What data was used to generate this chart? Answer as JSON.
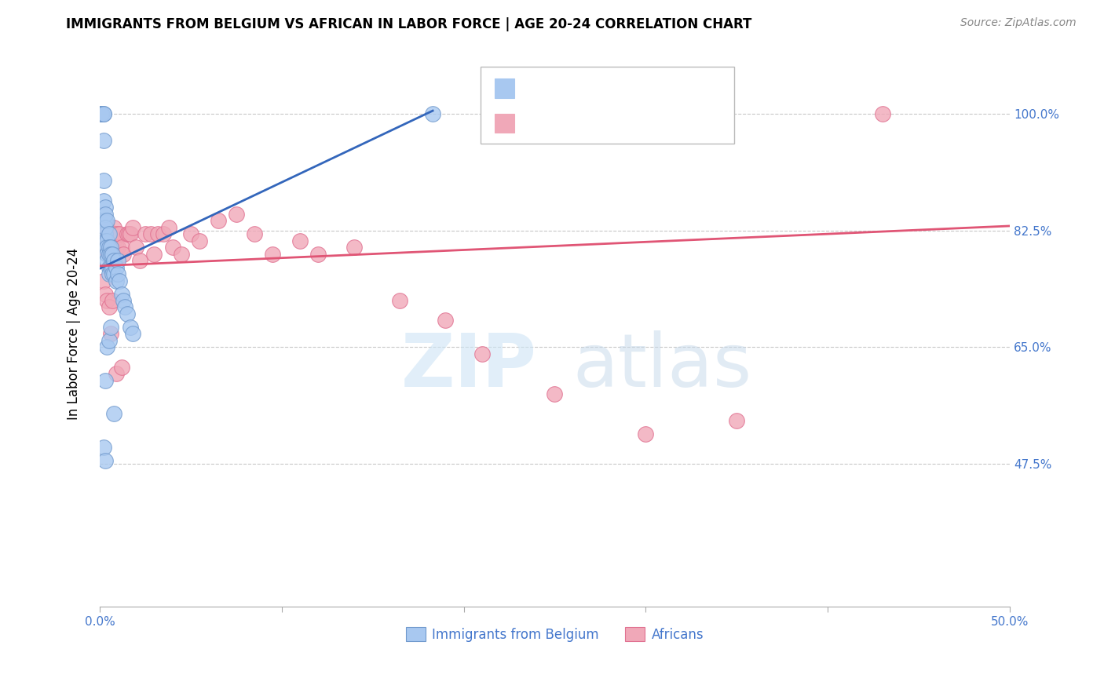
{
  "title": "IMMIGRANTS FROM BELGIUM VS AFRICAN IN LABOR FORCE | AGE 20-24 CORRELATION CHART",
  "source": "Source: ZipAtlas.com",
  "ylabel": "In Labor Force | Age 20-24",
  "xlim": [
    0.0,
    0.5
  ],
  "ylim": [
    0.26,
    1.08
  ],
  "xtick_labels": [
    "0.0%",
    "",
    "",
    "",
    "",
    "50.0%"
  ],
  "xtick_vals": [
    0.0,
    0.1,
    0.2,
    0.3,
    0.4,
    0.5
  ],
  "ytick_labels": [
    "47.5%",
    "65.0%",
    "82.5%",
    "100.0%"
  ],
  "ytick_vals": [
    0.475,
    0.65,
    0.825,
    1.0
  ],
  "grid_color": "#c8c8c8",
  "blue_color": "#a8c8f0",
  "pink_color": "#f0a8b8",
  "blue_edge": "#7099cc",
  "pink_edge": "#e07090",
  "blue_line_color": "#3366bb",
  "pink_line_color": "#e05575",
  "axis_label_color": "#4477CC",
  "right_label_color": "#4477CC",
  "legend_label_blue": "Immigrants from Belgium",
  "legend_label_pink": "Africans",
  "blue_scatter_x": [
    0.001,
    0.001,
    0.001,
    0.001,
    0.001,
    0.001,
    0.001,
    0.001,
    0.002,
    0.002,
    0.002,
    0.002,
    0.002,
    0.002,
    0.003,
    0.003,
    0.003,
    0.003,
    0.003,
    0.003,
    0.003,
    0.004,
    0.004,
    0.004,
    0.004,
    0.004,
    0.005,
    0.005,
    0.005,
    0.005,
    0.005,
    0.006,
    0.006,
    0.006,
    0.007,
    0.007,
    0.007,
    0.008,
    0.008,
    0.009,
    0.009,
    0.01,
    0.01,
    0.011,
    0.012,
    0.013,
    0.014,
    0.015,
    0.017,
    0.018,
    0.002,
    0.003,
    0.003,
    0.004,
    0.005,
    0.006,
    0.008,
    0.183
  ],
  "blue_scatter_y": [
    1.0,
    1.0,
    1.0,
    1.0,
    1.0,
    1.0,
    1.0,
    1.0,
    1.0,
    1.0,
    0.96,
    0.9,
    0.87,
    0.84,
    0.86,
    0.84,
    0.82,
    0.85,
    0.83,
    0.81,
    0.8,
    0.84,
    0.81,
    0.8,
    0.79,
    0.78,
    0.82,
    0.8,
    0.79,
    0.77,
    0.76,
    0.8,
    0.79,
    0.77,
    0.79,
    0.77,
    0.76,
    0.78,
    0.76,
    0.77,
    0.75,
    0.78,
    0.76,
    0.75,
    0.73,
    0.72,
    0.71,
    0.7,
    0.68,
    0.67,
    0.5,
    0.48,
    0.6,
    0.65,
    0.66,
    0.68,
    0.55,
    1.0
  ],
  "pink_scatter_x": [
    0.001,
    0.002,
    0.002,
    0.003,
    0.003,
    0.004,
    0.004,
    0.005,
    0.005,
    0.006,
    0.006,
    0.007,
    0.007,
    0.008,
    0.008,
    0.009,
    0.009,
    0.01,
    0.011,
    0.012,
    0.013,
    0.015,
    0.016,
    0.017,
    0.018,
    0.02,
    0.022,
    0.025,
    0.028,
    0.03,
    0.032,
    0.035,
    0.038,
    0.04,
    0.045,
    0.05,
    0.055,
    0.065,
    0.075,
    0.085,
    0.095,
    0.11,
    0.12,
    0.14,
    0.165,
    0.19,
    0.21,
    0.25,
    0.3,
    0.35,
    0.002,
    0.003,
    0.004,
    0.005,
    0.006,
    0.007,
    0.009,
    0.012,
    0.43
  ],
  "pink_scatter_y": [
    0.8,
    0.82,
    0.8,
    0.82,
    0.8,
    0.83,
    0.8,
    0.82,
    0.8,
    0.81,
    0.79,
    0.82,
    0.8,
    0.83,
    0.81,
    0.82,
    0.8,
    0.8,
    0.82,
    0.8,
    0.79,
    0.82,
    0.82,
    0.82,
    0.83,
    0.8,
    0.78,
    0.82,
    0.82,
    0.79,
    0.82,
    0.82,
    0.83,
    0.8,
    0.79,
    0.82,
    0.81,
    0.84,
    0.85,
    0.82,
    0.79,
    0.81,
    0.79,
    0.8,
    0.72,
    0.69,
    0.64,
    0.58,
    0.52,
    0.54,
    0.75,
    0.73,
    0.72,
    0.71,
    0.67,
    0.72,
    0.61,
    0.62,
    1.0
  ],
  "blue_trendline_x": [
    0.0,
    0.183
  ],
  "blue_trendline_y": [
    0.768,
    1.005
  ],
  "pink_trendline_x": [
    0.0,
    0.5
  ],
  "pink_trendline_y": [
    0.772,
    0.832
  ]
}
